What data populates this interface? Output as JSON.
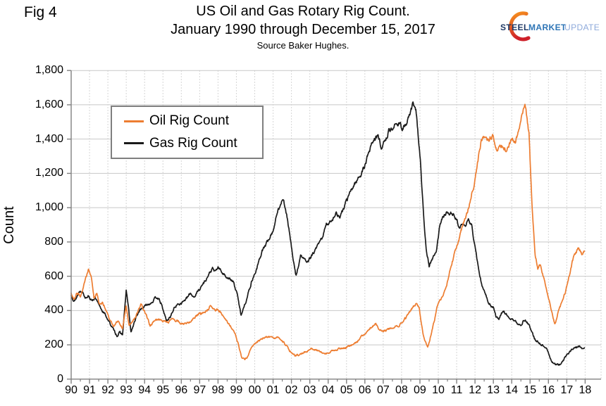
{
  "page": {
    "fig_label": "Fig 4",
    "title_line1": "US Oil and Gas Rotary Rig Count.",
    "title_line2": "January 1990 through December 15, 2017",
    "source": "Source Baker Hughes."
  },
  "logo": {
    "steel": "STEEL",
    "market": "MARKET",
    "update": "UPDATE",
    "steel_color": "#1F3864",
    "market_color": "#2E75B6",
    "update_color": "#8EAADB",
    "swoosh_top_color": "#F7941E",
    "swoosh_bottom_color": "#CE2029"
  },
  "chart_data": {
    "type": "line",
    "title": "US Oil and Gas Rotary Rig Count. January 1990 through December 15, 2017",
    "source": "Source Baker Hughes.",
    "ylabel": "Count",
    "xlabel": "",
    "y_range": [
      0,
      1800
    ],
    "x_range_years": [
      1990,
      2018.85
    ],
    "grid": {
      "horizontal": "solid",
      "vertical": "dotted",
      "color": "#c8c8c8"
    },
    "axis_color": "#808080",
    "legend_position": "top-left-inside",
    "y_ticks": [
      {
        "value": 0,
        "label": "0"
      },
      {
        "value": 200,
        "label": "200"
      },
      {
        "value": 400,
        "label": "400"
      },
      {
        "value": 600,
        "label": "600"
      },
      {
        "value": 800,
        "label": "800"
      },
      {
        "value": 1000,
        "label": "1,000"
      },
      {
        "value": 1200,
        "label": "1,200"
      },
      {
        "value": 1400,
        "label": "1,400"
      },
      {
        "value": 1600,
        "label": "1,600"
      },
      {
        "value": 1800,
        "label": "1,800"
      }
    ],
    "x_ticks": [
      "90",
      "91",
      "92",
      "93",
      "94",
      "95",
      "96",
      "97",
      "98",
      "99",
      "00",
      "01",
      "02",
      "03",
      "04",
      "05",
      "06",
      "07",
      "08",
      "09",
      "10",
      "11",
      "12",
      "13",
      "14",
      "15",
      "16",
      "17",
      "18"
    ],
    "series": [
      {
        "name": "Oil Rig Count",
        "color": "#ED7D31",
        "points": [
          [
            1990.0,
            505
          ],
          [
            1990.15,
            472
          ],
          [
            1990.3,
            498
          ],
          [
            1990.5,
            487
          ],
          [
            1990.7,
            552
          ],
          [
            1990.95,
            648
          ],
          [
            1991.1,
            598
          ],
          [
            1991.25,
            468
          ],
          [
            1991.4,
            498
          ],
          [
            1991.55,
            432
          ],
          [
            1991.7,
            452
          ],
          [
            1991.9,
            398
          ],
          [
            1992.1,
            345
          ],
          [
            1992.3,
            308
          ],
          [
            1992.55,
            342
          ],
          [
            1992.8,
            296
          ],
          [
            1993.0,
            430
          ],
          [
            1993.15,
            308
          ],
          [
            1993.35,
            332
          ],
          [
            1993.6,
            382
          ],
          [
            1993.8,
            432
          ],
          [
            1994.0,
            398
          ],
          [
            1994.3,
            312
          ],
          [
            1994.6,
            344
          ],
          [
            1994.9,
            352
          ],
          [
            1995.2,
            332
          ],
          [
            1995.5,
            348
          ],
          [
            1995.8,
            336
          ],
          [
            1996.1,
            320
          ],
          [
            1996.4,
            332
          ],
          [
            1996.7,
            362
          ],
          [
            1997.0,
            378
          ],
          [
            1997.3,
            388
          ],
          [
            1997.6,
            424
          ],
          [
            1997.8,
            398
          ],
          [
            1998.0,
            404
          ],
          [
            1998.25,
            380
          ],
          [
            1998.5,
            340
          ],
          [
            1998.75,
            295
          ],
          [
            1999.0,
            245
          ],
          [
            1999.15,
            185
          ],
          [
            1999.3,
            125
          ],
          [
            1999.45,
            112
          ],
          [
            1999.62,
            132
          ],
          [
            1999.8,
            185
          ],
          [
            2000.1,
            215
          ],
          [
            2000.45,
            240
          ],
          [
            2000.75,
            250
          ],
          [
            2001.05,
            240
          ],
          [
            2001.3,
            246
          ],
          [
            2001.6,
            216
          ],
          [
            2001.9,
            165
          ],
          [
            2002.2,
            137
          ],
          [
            2002.5,
            145
          ],
          [
            2002.8,
            158
          ],
          [
            2003.1,
            178
          ],
          [
            2003.4,
            168
          ],
          [
            2003.7,
            152
          ],
          [
            2003.95,
            148
          ],
          [
            2004.25,
            164
          ],
          [
            2004.55,
            175
          ],
          [
            2004.85,
            182
          ],
          [
            2005.15,
            190
          ],
          [
            2005.5,
            208
          ],
          [
            2005.8,
            246
          ],
          [
            2006.05,
            272
          ],
          [
            2006.35,
            302
          ],
          [
            2006.6,
            322
          ],
          [
            2006.8,
            276
          ],
          [
            2007.05,
            283
          ],
          [
            2007.35,
            292
          ],
          [
            2007.65,
            302
          ],
          [
            2007.95,
            323
          ],
          [
            2008.2,
            352
          ],
          [
            2008.45,
            398
          ],
          [
            2008.8,
            440
          ],
          [
            2008.95,
            418
          ],
          [
            2009.15,
            272
          ],
          [
            2009.42,
            180
          ],
          [
            2009.6,
            258
          ],
          [
            2009.78,
            335
          ],
          [
            2009.95,
            430
          ],
          [
            2010.2,
            472
          ],
          [
            2010.45,
            535
          ],
          [
            2010.65,
            640
          ],
          [
            2010.9,
            740
          ],
          [
            2011.1,
            800
          ],
          [
            2011.35,
            905
          ],
          [
            2011.6,
            975
          ],
          [
            2011.9,
            1110
          ],
          [
            2012.1,
            1230
          ],
          [
            2012.35,
            1390
          ],
          [
            2012.55,
            1425
          ],
          [
            2012.75,
            1405
          ],
          [
            2012.95,
            1428
          ],
          [
            2013.2,
            1330
          ],
          [
            2013.45,
            1356
          ],
          [
            2013.7,
            1342
          ],
          [
            2013.95,
            1392
          ],
          [
            2014.2,
            1378
          ],
          [
            2014.45,
            1495
          ],
          [
            2014.72,
            1605
          ],
          [
            2014.95,
            1420
          ],
          [
            2015.1,
            1020
          ],
          [
            2015.28,
            730
          ],
          [
            2015.42,
            645
          ],
          [
            2015.55,
            668
          ],
          [
            2015.72,
            600
          ],
          [
            2015.9,
            515
          ],
          [
            2016.1,
            438
          ],
          [
            2016.35,
            318
          ],
          [
            2016.52,
            382
          ],
          [
            2016.72,
            448
          ],
          [
            2016.92,
            505
          ],
          [
            2017.1,
            590
          ],
          [
            2017.3,
            682
          ],
          [
            2017.5,
            740
          ],
          [
            2017.65,
            765
          ],
          [
            2017.8,
            730
          ],
          [
            2017.96,
            747
          ]
        ]
      },
      {
        "name": "Gas Rig Count",
        "color": "#1a1a1a",
        "points": [
          [
            1990.0,
            487
          ],
          [
            1990.2,
            458
          ],
          [
            1990.45,
            512
          ],
          [
            1990.6,
            518
          ],
          [
            1990.75,
            478
          ],
          [
            1990.95,
            492
          ],
          [
            1991.1,
            458
          ],
          [
            1991.3,
            475
          ],
          [
            1991.5,
            430
          ],
          [
            1991.7,
            400
          ],
          [
            1991.9,
            368
          ],
          [
            1992.1,
            328
          ],
          [
            1992.3,
            288
          ],
          [
            1992.5,
            254
          ],
          [
            1992.65,
            272
          ],
          [
            1992.8,
            258
          ],
          [
            1993.0,
            515
          ],
          [
            1993.12,
            420
          ],
          [
            1993.25,
            272
          ],
          [
            1993.5,
            348
          ],
          [
            1993.7,
            398
          ],
          [
            1993.9,
            418
          ],
          [
            1994.1,
            430
          ],
          [
            1994.4,
            452
          ],
          [
            1994.7,
            480
          ],
          [
            1994.9,
            438
          ],
          [
            1995.2,
            338
          ],
          [
            1995.4,
            365
          ],
          [
            1995.65,
            422
          ],
          [
            1995.85,
            438
          ],
          [
            1996.05,
            450
          ],
          [
            1996.3,
            470
          ],
          [
            1996.5,
            500
          ],
          [
            1996.7,
            480
          ],
          [
            1996.9,
            512
          ],
          [
            1997.2,
            558
          ],
          [
            1997.45,
            600
          ],
          [
            1997.7,
            645
          ],
          [
            1997.85,
            622
          ],
          [
            1998.0,
            652
          ],
          [
            1998.3,
            612
          ],
          [
            1998.6,
            588
          ],
          [
            1998.85,
            562
          ],
          [
            1999.05,
            492
          ],
          [
            1999.25,
            375
          ],
          [
            1999.5,
            450
          ],
          [
            1999.7,
            520
          ],
          [
            1999.85,
            578
          ],
          [
            2000.1,
            640
          ],
          [
            2000.4,
            748
          ],
          [
            2000.7,
            800
          ],
          [
            2001.0,
            868
          ],
          [
            2001.25,
            975
          ],
          [
            2001.5,
            1058
          ],
          [
            2001.68,
            1000
          ],
          [
            2001.9,
            848
          ],
          [
            2002.1,
            688
          ],
          [
            2002.25,
            598
          ],
          [
            2002.5,
            718
          ],
          [
            2002.7,
            700
          ],
          [
            2002.9,
            678
          ],
          [
            2003.1,
            720
          ],
          [
            2003.4,
            768
          ],
          [
            2003.65,
            820
          ],
          [
            2003.9,
            898
          ],
          [
            2004.15,
            925
          ],
          [
            2004.45,
            968
          ],
          [
            2004.65,
            945
          ],
          [
            2004.9,
            1010
          ],
          [
            2005.2,
            1088
          ],
          [
            2005.5,
            1150
          ],
          [
            2005.75,
            1190
          ],
          [
            2005.95,
            1228
          ],
          [
            2006.1,
            1285
          ],
          [
            2006.3,
            1350
          ],
          [
            2006.5,
            1402
          ],
          [
            2006.7,
            1420
          ],
          [
            2006.9,
            1356
          ],
          [
            2007.1,
            1382
          ],
          [
            2007.3,
            1450
          ],
          [
            2007.6,
            1472
          ],
          [
            2007.9,
            1502
          ],
          [
            2008.05,
            1462
          ],
          [
            2008.25,
            1482
          ],
          [
            2008.45,
            1542
          ],
          [
            2008.65,
            1602
          ],
          [
            2008.78,
            1572
          ],
          [
            2008.92,
            1400
          ],
          [
            2009.05,
            1228
          ],
          [
            2009.2,
            950
          ],
          [
            2009.35,
            762
          ],
          [
            2009.5,
            665
          ],
          [
            2009.65,
            700
          ],
          [
            2009.8,
            722
          ],
          [
            2009.92,
            765
          ],
          [
            2010.08,
            890
          ],
          [
            2010.25,
            945
          ],
          [
            2010.42,
            968
          ],
          [
            2010.58,
            978
          ],
          [
            2010.75,
            968
          ],
          [
            2010.9,
            945
          ],
          [
            2011.1,
            902
          ],
          [
            2011.3,
            888
          ],
          [
            2011.5,
            900
          ],
          [
            2011.65,
            932
          ],
          [
            2011.82,
            895
          ],
          [
            2011.95,
            808
          ],
          [
            2012.15,
            665
          ],
          [
            2012.35,
            560
          ],
          [
            2012.55,
            498
          ],
          [
            2012.72,
            452
          ],
          [
            2012.88,
            428
          ],
          [
            2013.0,
            424
          ],
          [
            2013.15,
            362
          ],
          [
            2013.3,
            352
          ],
          [
            2013.45,
            390
          ],
          [
            2013.6,
            392
          ],
          [
            2013.78,
            370
          ],
          [
            2013.95,
            355
          ],
          [
            2014.1,
            338
          ],
          [
            2014.3,
            325
          ],
          [
            2014.5,
            315
          ],
          [
            2014.65,
            348
          ],
          [
            2014.8,
            340
          ],
          [
            2014.95,
            312
          ],
          [
            2015.1,
            268
          ],
          [
            2015.3,
            228
          ],
          [
            2015.5,
            212
          ],
          [
            2015.7,
            196
          ],
          [
            2015.88,
            178
          ],
          [
            2015.98,
            160
          ],
          [
            2016.1,
            118
          ],
          [
            2016.25,
            94
          ],
          [
            2016.45,
            84
          ],
          [
            2016.6,
            82
          ],
          [
            2016.75,
            100
          ],
          [
            2016.92,
            128
          ],
          [
            2017.1,
            152
          ],
          [
            2017.28,
            172
          ],
          [
            2017.45,
            190
          ],
          [
            2017.55,
            182
          ],
          [
            2017.7,
            192
          ],
          [
            2017.85,
            180
          ],
          [
            2017.96,
            183
          ]
        ]
      }
    ]
  }
}
